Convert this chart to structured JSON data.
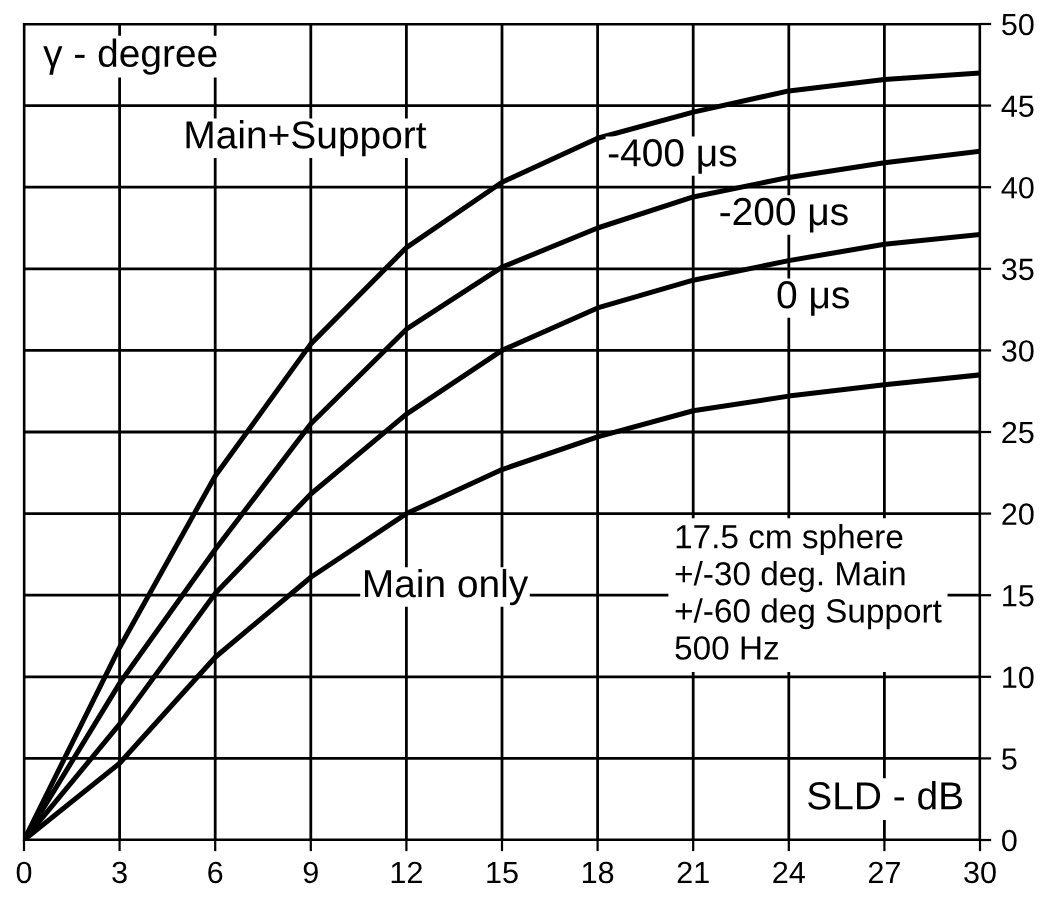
{
  "chart_data": {
    "type": "line",
    "xlabel": "SLD - dB",
    "ylabel": "γ - degree",
    "x": [
      0,
      3,
      6,
      9,
      12,
      15,
      18,
      21,
      24,
      27,
      30
    ],
    "series": [
      {
        "name": "-400 μs",
        "color": "#000000",
        "values": [
          0,
          11.8,
          22.3,
          30.4,
          36.3,
          40.3,
          43,
          44.6,
          45.9,
          46.6,
          47
        ]
      },
      {
        "name": "-200 μs",
        "color": "#000000",
        "values": [
          0,
          9.6,
          17.8,
          25.5,
          31.3,
          35.1,
          37.5,
          39.4,
          40.6,
          41.5,
          42.2
        ]
      },
      {
        "name": "0 μs",
        "color": "#000000",
        "values": [
          0,
          7.1,
          15.1,
          21.2,
          26.1,
          30,
          32.6,
          34.3,
          35.5,
          36.5,
          37.1
        ]
      },
      {
        "name": "Main only",
        "color": "#000000",
        "values": [
          0,
          4.7,
          11.2,
          16.1,
          20,
          22.7,
          24.7,
          26.3,
          27.2,
          27.9,
          28.5
        ]
      }
    ],
    "annotations": [
      "Main+Support",
      "17.5 cm sphere\n+/-30 deg. Main\n+/-60 deg Support\n500 Hz"
    ],
    "xlim": [
      0,
      30
    ],
    "ylim": [
      0,
      50
    ],
    "xticks": [
      0,
      3,
      6,
      9,
      12,
      15,
      18,
      21,
      24,
      27,
      30
    ],
    "yticks": [
      0,
      5,
      10,
      15,
      20,
      25,
      30,
      35,
      40,
      45,
      50
    ],
    "grid": true,
    "legend": false,
    "marker": "none",
    "line_style": "solid"
  }
}
